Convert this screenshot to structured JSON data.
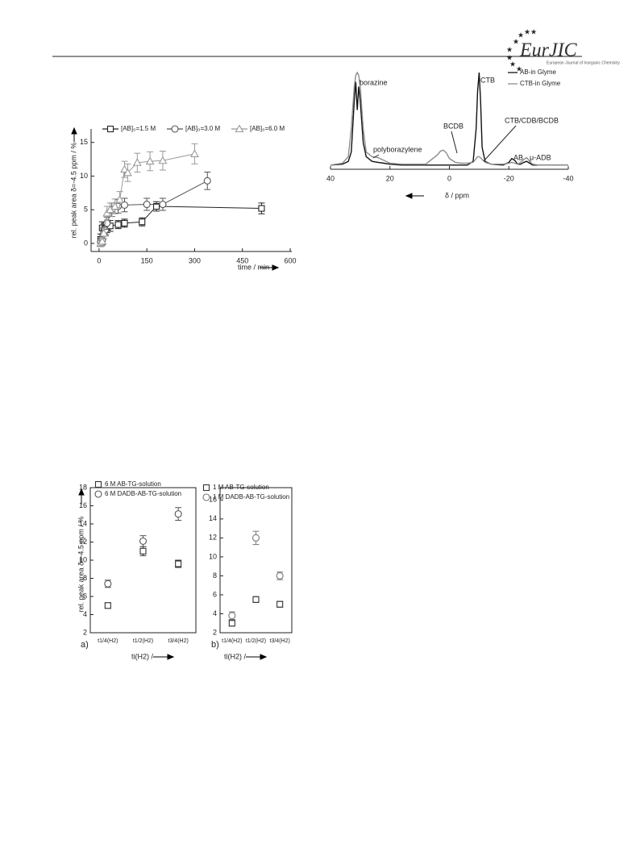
{
  "header": {
    "logo": "EurJIC",
    "journal": "European Journal of Inorganic Chemistry"
  },
  "chart_data": [
    {
      "type": "line",
      "xlabel": "time / min",
      "ylabel": "rel. peak area δ=-4.5 ppm / %",
      "xlim": [
        -25,
        605
      ],
      "xticks": [
        0,
        150,
        300,
        450,
        600
      ],
      "ylim": [
        -1.2,
        17
      ],
      "yticks": [
        0,
        5,
        10,
        15
      ],
      "series": [
        {
          "name": "[AB]₀=1.5 M",
          "color": "#222222",
          "marker": "square",
          "x": [
            5,
            10,
            15,
            20,
            25,
            35,
            60,
            80,
            135,
            180,
            510
          ],
          "values": [
            0.6,
            2.3,
            2.0,
            2.2,
            2.4,
            2.6,
            2.8,
            3.0,
            3.2,
            5.5,
            5.2
          ],
          "errors": [
            0.8,
            0.9,
            0.9,
            0.9,
            0.8,
            0.8,
            0.6,
            0.6,
            0.6,
            0.7,
            0.8
          ]
        },
        {
          "name": "[AB]₀=3.0 M",
          "color": "#555555",
          "marker": "circle",
          "x": [
            5,
            10,
            15,
            20,
            25,
            40,
            60,
            80,
            150,
            200,
            340
          ],
          "values": [
            0.2,
            0.5,
            1.5,
            2.0,
            3.0,
            5.0,
            5.5,
            5.7,
            5.8,
            5.8,
            9.3
          ],
          "errors": [
            0.6,
            0.7,
            0.8,
            0.9,
            0.9,
            1.0,
            1.0,
            1.0,
            0.9,
            0.9,
            1.3
          ]
        },
        {
          "name": "[AB]₀=6.0 M",
          "color": "#999999",
          "marker": "triangle",
          "x": [
            5,
            10,
            15,
            25,
            35,
            50,
            65,
            80,
            90,
            120,
            160,
            200,
            300
          ],
          "values": [
            0,
            0.3,
            1.5,
            4.5,
            5.0,
            5.5,
            6.5,
            11.0,
            10.5,
            12.0,
            12.2,
            12.3,
            13.3
          ],
          "errors": [
            0.5,
            0.6,
            0.8,
            1.0,
            1.0,
            1.1,
            1.2,
            1.2,
            1.3,
            1.4,
            1.4,
            1.4,
            1.5
          ]
        }
      ]
    },
    {
      "type": "line",
      "xlabel": "δ / ppm",
      "xlim": [
        40,
        -40
      ],
      "xticks": [
        40,
        20,
        0,
        -20,
        -40
      ],
      "x": [
        40,
        36,
        34,
        33,
        32,
        31.5,
        31,
        30.5,
        30,
        29,
        28,
        26,
        24,
        22,
        20,
        16,
        12,
        8,
        4,
        3,
        2,
        1,
        0,
        -2,
        -4,
        -6,
        -8,
        -9,
        -9.5,
        -10,
        -10.5,
        -11,
        -12,
        -14,
        -18,
        -20,
        -21,
        -22,
        -23,
        -24,
        -25,
        -26,
        -27,
        -28,
        -30,
        -35,
        -40
      ],
      "series": [
        {
          "name": "AB-in Glyme",
          "color": "#111111",
          "values": [
            1,
            2,
            5,
            15,
            70,
            90,
            60,
            85,
            70,
            25,
            10,
            5,
            4,
            3,
            2,
            1,
            1,
            1,
            1,
            1,
            1,
            1,
            1,
            1,
            1,
            1,
            5,
            40,
            80,
            100,
            70,
            20,
            5,
            2,
            1,
            4,
            8,
            6,
            2,
            2,
            4,
            5,
            3,
            1,
            1,
            1,
            1
          ]
        },
        {
          "name": "CTB-in Glyme",
          "color": "#8c8c8c",
          "values": [
            1,
            3,
            10,
            40,
            85,
            97,
            100,
            97,
            85,
            40,
            15,
            10,
            9,
            6,
            3,
            2,
            2,
            2,
            12,
            16,
            17,
            14,
            8,
            4,
            3,
            3,
            4,
            8,
            10,
            10,
            9,
            7,
            4,
            2,
            2,
            3,
            4,
            3,
            2,
            4,
            7,
            9,
            5,
            2,
            1,
            1,
            1
          ]
        }
      ],
      "annotations": [
        "borazine",
        "polyborazylene",
        "BCDB",
        "CTB",
        "CTB/CDB/BCDB",
        "AB",
        "μ-ADB"
      ]
    },
    {
      "type": "scatter",
      "panel_label": "a)",
      "xlabel": "ti(H2) /",
      "ylabel": "rel. peak area δ=-4.5 ppm / %",
      "categories": [
        "t1/4(H2)",
        "t1/2(H2)",
        "t3/4(H2)"
      ],
      "ylim": [
        2,
        18
      ],
      "yticks": [
        2,
        4,
        6,
        8,
        10,
        12,
        14,
        16,
        18
      ],
      "series": [
        {
          "name": "6 M AB-TG-solution",
          "color": "#333333",
          "marker": "square",
          "values": [
            5.0,
            11.0,
            9.6
          ],
          "errors": [
            0.3,
            0.5,
            0.4
          ]
        },
        {
          "name": "6 M DADB-AB-TG-solution",
          "color": "#555555",
          "marker": "circle",
          "values": [
            7.4,
            12.1,
            15.1
          ],
          "errors": [
            0.4,
            0.6,
            0.7
          ]
        }
      ]
    },
    {
      "type": "scatter",
      "panel_label": "b)",
      "xlabel": "ti(H2) /",
      "categories": [
        "t1/4(H2)",
        "t1/2(H2)",
        "t3/4(H2)"
      ],
      "ylim": [
        2,
        17.3
      ],
      "yticks": [
        2,
        4,
        6,
        8,
        10,
        12,
        14,
        16
      ],
      "series": [
        {
          "name": "1 M AB-TG-solution",
          "color": "#333333",
          "marker": "square",
          "values": [
            3.0,
            5.5,
            5.0
          ],
          "errors": [
            0.3,
            0.3,
            0.3
          ]
        },
        {
          "name": "1 M DADB-AB-TG-solution",
          "color": "#777777",
          "marker": "circle",
          "values": [
            3.8,
            12.0,
            8.0
          ],
          "errors": [
            0.4,
            0.7,
            0.4
          ]
        }
      ]
    }
  ]
}
